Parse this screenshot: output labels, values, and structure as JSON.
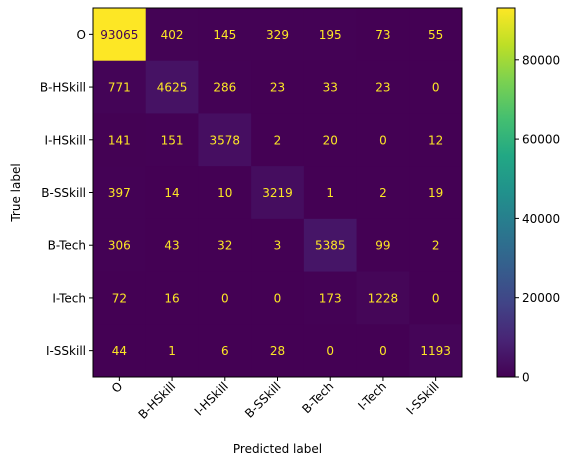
{
  "chart_data": {
    "type": "heatmap",
    "xlabel": "Predicted label",
    "ylabel": "True label",
    "labels": [
      "O",
      "B-HSkill",
      "I-HSkill",
      "B-SSkill",
      "B-Tech",
      "I-Tech",
      "I-SSkill"
    ],
    "matrix": [
      [
        93065,
        402,
        145,
        329,
        195,
        73,
        55
      ],
      [
        771,
        4625,
        286,
        23,
        33,
        23,
        0
      ],
      [
        141,
        151,
        3578,
        2,
        20,
        0,
        12
      ],
      [
        397,
        14,
        10,
        3219,
        1,
        2,
        19
      ],
      [
        306,
        43,
        32,
        3,
        5385,
        99,
        2
      ],
      [
        72,
        16,
        0,
        0,
        173,
        1228,
        0
      ],
      [
        44,
        1,
        6,
        28,
        0,
        0,
        1193
      ]
    ],
    "colormap": "viridis",
    "value_range": [
      0,
      93065
    ],
    "colorbar": {
      "ticks": [
        0,
        20000,
        40000,
        60000,
        80000
      ],
      "tick_labels": [
        "0",
        "20000",
        "40000",
        "60000",
        "80000"
      ]
    },
    "text_colors": {
      "on_dark": "#fde725",
      "on_light": "#440154"
    }
  }
}
